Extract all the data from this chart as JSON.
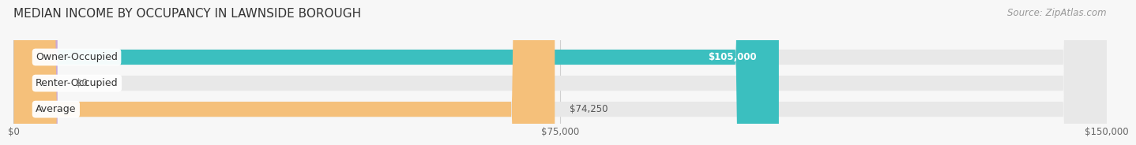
{
  "title": "MEDIAN INCOME BY OCCUPANCY IN LAWNSIDE BOROUGH",
  "source": "Source: ZipAtlas.com",
  "categories": [
    "Owner-Occupied",
    "Renter-Occupied",
    "Average"
  ],
  "values": [
    105000,
    0,
    74250
  ],
  "bar_colors": [
    "#3bbfbf",
    "#c9a8d4",
    "#f5c07a"
  ],
  "value_labels": [
    "$105,000",
    "$0",
    "$74,250"
  ],
  "xlim": [
    0,
    150000
  ],
  "xticks": [
    0,
    75000,
    150000
  ],
  "xtick_labels": [
    "$0",
    "$75,000",
    "$150,000"
  ],
  "bar_height": 0.58,
  "bg_color": "#f7f7f7",
  "track_color": "#e8e8e8",
  "grid_color": "#d0d0d0",
  "title_fontsize": 11,
  "source_fontsize": 8.5,
  "label_fontsize": 9,
  "value_fontsize": 8.5,
  "value_label_color": [
    "#ffffff",
    "#666666",
    "#555555"
  ],
  "value_inside": [
    true,
    false,
    false
  ]
}
